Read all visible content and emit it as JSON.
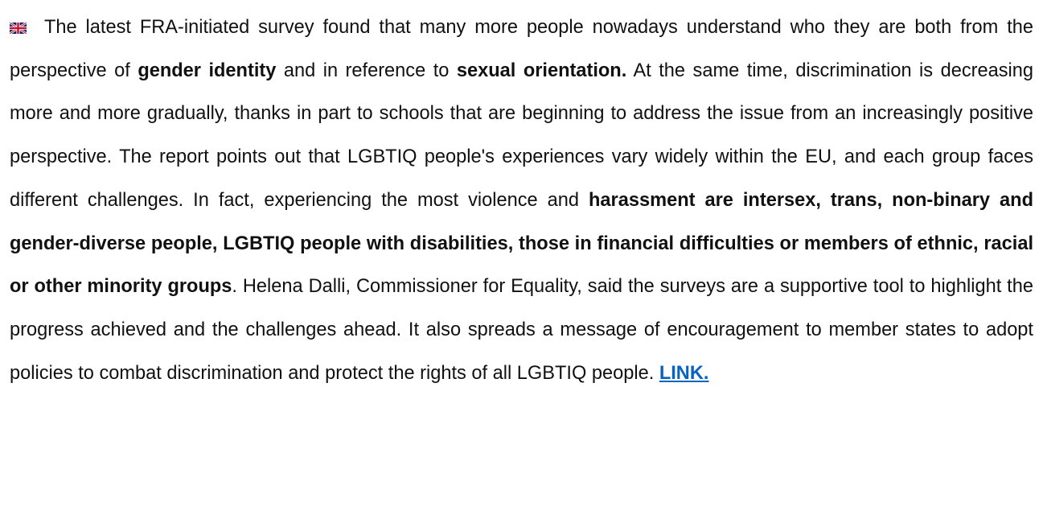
{
  "paragraph": {
    "segments": [
      {
        "text": "The latest FRA-initiated survey found that many more people nowadays understand who they are both from the perspective of ",
        "style": "normal"
      },
      {
        "text": "gender identity",
        "style": "bold"
      },
      {
        "text": " and in reference to ",
        "style": "normal"
      },
      {
        "text": "sexual orientation.",
        "style": "bold"
      },
      {
        "text": " At the same time, discrimination is decreasing more and more gradually, thanks in part to schools that are beginning to address the issue from an increasingly positive perspective. The report points out that LGBTIQ people's experiences vary widely within the EU, and each group faces different challenges. In fact, experiencing the most violence and ",
        "style": "normal"
      },
      {
        "text": "harassment are intersex, trans, non-binary and gender-diverse people, LGBTIQ people with disabilities, those in financial difficulties or members of ethnic, racial or other minority groups",
        "style": "bold"
      },
      {
        "text": ". Helena Dalli, Commissioner for Equality, said the surveys are a supportive tool to highlight the progress achieved and the challenges ahead. It also spreads a message of encouragement to member states to adopt policies to combat discrimination and protect the rights of all LGBTIQ people. ",
        "style": "normal"
      },
      {
        "text": "LINK.",
        "style": "link"
      }
    ]
  }
}
